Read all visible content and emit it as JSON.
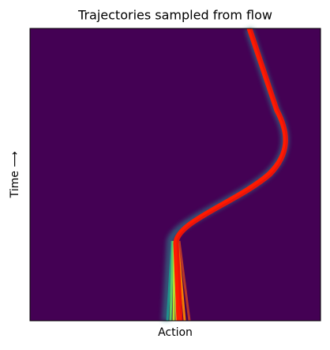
{
  "chart_data": {
    "type": "line",
    "title": "Trajectories sampled from flow",
    "xlabel": "Action",
    "ylabel": "Time ⟶"
  }
}
